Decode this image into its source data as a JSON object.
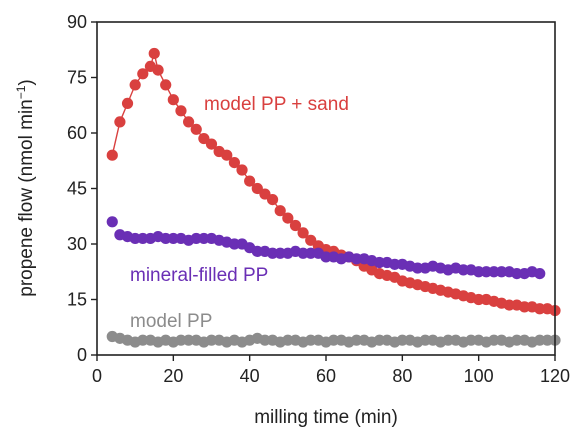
{
  "chart_data": {
    "type": "scatter",
    "title": "",
    "xlabel": "milling time (min)",
    "ylabel_main": "propene flow (nmol min",
    "ylabel_sup": "−1",
    "ylabel_close": ")",
    "xlim": [
      0,
      120
    ],
    "ylim": [
      0,
      90
    ],
    "xticks": [
      0,
      20,
      40,
      60,
      80,
      100,
      120
    ],
    "yticks": [
      0,
      15,
      30,
      45,
      60,
      75,
      90
    ],
    "grid": false,
    "series": [
      {
        "name": "model PP + sand",
        "color": "#d9403f",
        "connected": true,
        "x": [
          4,
          6,
          8,
          10,
          12,
          14,
          15,
          16,
          18,
          20,
          22,
          24,
          26,
          28,
          30,
          32,
          34,
          36,
          38,
          40,
          42,
          44,
          46,
          48,
          50,
          52,
          54,
          56,
          58,
          60,
          62,
          64,
          66,
          68,
          70,
          72,
          74,
          76,
          78,
          80,
          82,
          84,
          86,
          88,
          90,
          92,
          94,
          96,
          98,
          100,
          102,
          104,
          106,
          108,
          110,
          112,
          114,
          116,
          118,
          120
        ],
        "y": [
          54,
          63,
          68,
          73,
          76,
          78,
          81.5,
          77,
          73,
          69,
          66,
          63,
          61,
          58.5,
          57,
          55,
          54,
          52,
          50,
          47,
          45,
          43.5,
          42,
          39,
          37,
          35,
          33,
          31,
          29.5,
          28.5,
          28,
          27,
          26.5,
          25.5,
          24,
          23,
          22,
          21.5,
          21,
          20,
          19.5,
          19,
          18.5,
          18,
          17.5,
          17,
          16.5,
          16,
          15.5,
          15,
          15,
          14.5,
          14,
          13.5,
          13.5,
          13,
          13,
          12.5,
          12.5,
          12
        ]
      },
      {
        "name": "mineral-filled PP",
        "color": "#6a2fb5",
        "connected": false,
        "x": [
          4,
          6,
          8,
          10,
          12,
          14,
          16,
          18,
          20,
          22,
          24,
          26,
          28,
          30,
          32,
          34,
          36,
          38,
          40,
          42,
          44,
          46,
          48,
          50,
          52,
          54,
          56,
          58,
          60,
          62,
          64,
          66,
          68,
          70,
          72,
          74,
          76,
          78,
          80,
          82,
          84,
          86,
          88,
          90,
          92,
          94,
          96,
          98,
          100,
          102,
          104,
          106,
          108,
          110,
          112,
          114,
          116
        ],
        "y": [
          36,
          32.5,
          32,
          31.5,
          31.5,
          31.5,
          32,
          31.5,
          31.5,
          31.5,
          31,
          31.5,
          31.5,
          31.5,
          31,
          30.5,
          30,
          30,
          29,
          28,
          28,
          27.5,
          27.5,
          27.5,
          28,
          27.5,
          27.5,
          27.5,
          26.5,
          26.5,
          26,
          26.5,
          26,
          26,
          25.5,
          25,
          25,
          24.5,
          24.5,
          24,
          23.5,
          23.5,
          24,
          23.5,
          23,
          23.5,
          23,
          23,
          22.5,
          22.5,
          22.5,
          22.5,
          22.5,
          22,
          22,
          22.5,
          22
        ]
      },
      {
        "name": "model PP",
        "color": "#8c8c8c",
        "connected": false,
        "x": [
          4,
          6,
          8,
          10,
          12,
          14,
          16,
          18,
          20,
          22,
          24,
          26,
          28,
          30,
          32,
          34,
          36,
          38,
          40,
          42,
          44,
          46,
          48,
          50,
          52,
          54,
          56,
          58,
          60,
          62,
          64,
          66,
          68,
          70,
          72,
          74,
          76,
          78,
          80,
          82,
          84,
          86,
          88,
          90,
          92,
          94,
          96,
          98,
          100,
          102,
          104,
          106,
          108,
          110,
          112,
          114,
          116,
          118,
          120
        ],
        "y": [
          5,
          4.5,
          4,
          3.5,
          4,
          4,
          3.5,
          4,
          3.5,
          4,
          4,
          4,
          3.5,
          4,
          4,
          3.5,
          4,
          3.5,
          4,
          4.5,
          4,
          4,
          3.5,
          4,
          4,
          3.5,
          4,
          4,
          3.5,
          4,
          4,
          3.5,
          4,
          4,
          3.5,
          4,
          4,
          3.5,
          4,
          4,
          3.5,
          4,
          4,
          3.5,
          4,
          4,
          3.5,
          4,
          4,
          3.5,
          4,
          4,
          3.5,
          4,
          4,
          3.5,
          4,
          4,
          4
        ]
      }
    ]
  }
}
